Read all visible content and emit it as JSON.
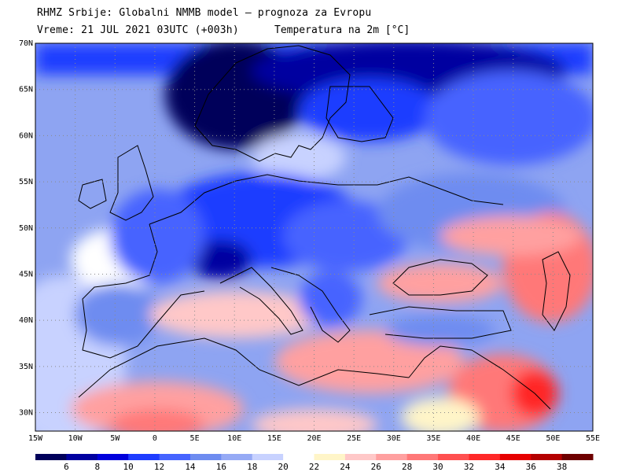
{
  "header": {
    "line1": "RHMZ Srbije: Globalni NMMB model — prognoza za Evropu",
    "line2_left": "Vreme: 21 JUL 2021 03UTC (+003h)",
    "line2_right": "Temperatura na 2m [°C]"
  },
  "map": {
    "lat_labels": [
      "70N",
      "65N",
      "60N",
      "55N",
      "50N",
      "45N",
      "40N",
      "35N",
      "30N"
    ],
    "lon_labels": [
      "15W",
      "10W",
      "5W",
      "0",
      "5E",
      "10E",
      "15E",
      "20E",
      "25E",
      "30E",
      "35E",
      "40E",
      "45E",
      "50E",
      "55E"
    ],
    "lat_values": [
      70,
      65,
      60,
      55,
      50,
      45,
      40,
      35,
      30
    ],
    "lon_values": [
      -15,
      -10,
      -5,
      0,
      5,
      10,
      15,
      20,
      25,
      30,
      35,
      40,
      45,
      50,
      55
    ],
    "lat_range": [
      28,
      70
    ],
    "lon_range": [
      -15,
      55
    ],
    "grid": "dotted"
  },
  "colorbar": {
    "labels": [
      "6",
      "8",
      "10",
      "12",
      "14",
      "16",
      "18",
      "20",
      "22",
      "24",
      "26",
      "28",
      "30",
      "32",
      "34",
      "36",
      "38"
    ],
    "colors": [
      "#00005a",
      "#0000a0",
      "#0000dc",
      "#1e3cff",
      "#4664ff",
      "#6e8cf0",
      "#96aaf5",
      "#c8d2ff",
      "#ffffff",
      "#fff5c8",
      "#ffc8c8",
      "#ffa0a0",
      "#ff7878",
      "#ff5050",
      "#ff2828",
      "#e60000",
      "#b40000",
      "#6e0000"
    ]
  }
}
